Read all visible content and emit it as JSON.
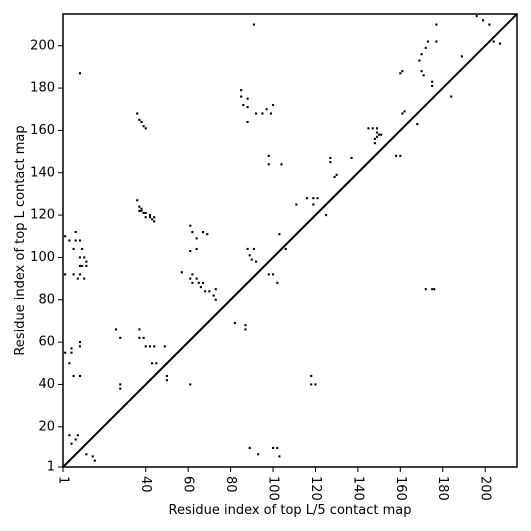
{
  "chart_data": {
    "type": "heatmap",
    "title": "",
    "xlabel": "Residue index of top L/5 contact map",
    "ylabel": "Residue index of top L contact map",
    "xlim": [
      1,
      215
    ],
    "ylim": [
      1,
      215
    ],
    "x_ticks": [
      1,
      40,
      60,
      80,
      100,
      120,
      140,
      160,
      180,
      200
    ],
    "y_ticks": [
      1,
      20,
      40,
      60,
      80,
      100,
      120,
      140,
      160,
      180,
      200
    ],
    "x_tick_labels": [
      "1",
      "40",
      "60",
      "80",
      "100",
      "120",
      "140",
      "160",
      "180",
      "200"
    ],
    "y_tick_labels": [
      "1",
      "20",
      "40",
      "60",
      "80",
      "100",
      "120",
      "140",
      "160",
      "180",
      "200"
    ],
    "x_tick_rotation_deg": -90,
    "diagonal": true,
    "grid": false,
    "colors": {
      "contact": "#000000",
      "background": "#ffffff",
      "frame": "#000000"
    },
    "points_upper": [
      [
        9,
        187
      ],
      [
        36,
        168
      ],
      [
        37,
        165
      ],
      [
        38,
        164
      ],
      [
        39,
        162
      ],
      [
        40,
        161
      ],
      [
        85,
        179
      ],
      [
        85,
        176
      ],
      [
        86,
        172
      ],
      [
        88,
        175
      ],
      [
        88,
        171
      ],
      [
        88,
        164
      ],
      [
        92,
        168
      ],
      [
        95,
        168
      ],
      [
        97,
        170
      ],
      [
        99,
        168
      ],
      [
        100,
        172
      ],
      [
        98,
        148
      ],
      [
        98,
        144
      ],
      [
        104,
        144
      ],
      [
        111,
        125
      ],
      [
        116,
        128
      ],
      [
        119,
        128
      ],
      [
        121,
        128
      ],
      [
        119,
        125
      ],
      [
        125,
        120
      ],
      [
        127,
        147
      ],
      [
        127,
        145
      ],
      [
        129,
        138
      ],
      [
        130,
        139
      ],
      [
        137,
        147
      ],
      [
        145,
        161
      ],
      [
        147,
        161
      ],
      [
        148,
        156
      ],
      [
        148,
        154
      ],
      [
        149,
        157
      ],
      [
        151,
        158
      ],
      [
        158,
        148
      ],
      [
        160,
        148
      ],
      [
        161,
        168
      ],
      [
        162,
        169
      ],
      [
        168,
        163
      ],
      [
        169,
        193
      ],
      [
        170,
        196
      ],
      [
        170,
        188
      ],
      [
        171,
        186
      ],
      [
        172,
        199
      ],
      [
        173,
        202
      ],
      [
        175,
        183
      ],
      [
        175,
        181
      ],
      [
        177,
        210
      ],
      [
        177,
        202
      ],
      [
        184,
        176
      ],
      [
        189,
        195
      ],
      [
        196,
        214
      ],
      [
        199,
        212
      ],
      [
        202,
        210
      ],
      [
        204,
        202
      ],
      [
        207,
        201
      ],
      [
        91,
        210
      ],
      [
        160,
        187
      ],
      [
        161,
        188
      ],
      [
        149,
        161
      ],
      [
        149,
        159
      ],
      [
        150,
        158
      ]
    ],
    "points_lower": [
      [
        2,
        110
      ],
      [
        4,
        108
      ],
      [
        7,
        112
      ],
      [
        7,
        108
      ],
      [
        6,
        104
      ],
      [
        9,
        108
      ],
      [
        10,
        104
      ],
      [
        11,
        100
      ],
      [
        12,
        98
      ],
      [
        9,
        100
      ],
      [
        2,
        92
      ],
      [
        6,
        92
      ],
      [
        8,
        90
      ],
      [
        9,
        92
      ],
      [
        11,
        90
      ],
      [
        9,
        96
      ],
      [
        10,
        96
      ],
      [
        12,
        96
      ],
      [
        36,
        127
      ],
      [
        37,
        124
      ],
      [
        38,
        122
      ],
      [
        39,
        121
      ],
      [
        40,
        121
      ],
      [
        42,
        119
      ],
      [
        43,
        118
      ],
      [
        44,
        117
      ],
      [
        37,
        122
      ],
      [
        38,
        123
      ],
      [
        40,
        119
      ],
      [
        42,
        120
      ],
      [
        44,
        119
      ],
      [
        57,
        93
      ],
      [
        61,
        90
      ],
      [
        62,
        88
      ],
      [
        62,
        92
      ],
      [
        64,
        90
      ],
      [
        65,
        88
      ],
      [
        67,
        88
      ],
      [
        66,
        86
      ],
      [
        68,
        84
      ],
      [
        61,
        115
      ],
      [
        62,
        112
      ],
      [
        64,
        109
      ],
      [
        67,
        112
      ],
      [
        69,
        111
      ],
      [
        61,
        103
      ],
      [
        64,
        104
      ],
      [
        70,
        84
      ],
      [
        72,
        82
      ],
      [
        73,
        85
      ],
      [
        89,
        101
      ],
      [
        90,
        99
      ],
      [
        91,
        104
      ],
      [
        88,
        104
      ],
      [
        92,
        98
      ],
      [
        98,
        92
      ],
      [
        100,
        92
      ],
      [
        102,
        88
      ],
      [
        103,
        111
      ],
      [
        106,
        104
      ],
      [
        73,
        80
      ],
      [
        82,
        69
      ],
      [
        87,
        68
      ],
      [
        87,
        66
      ],
      [
        26,
        66
      ],
      [
        28,
        62
      ],
      [
        37,
        66
      ],
      [
        37,
        62
      ],
      [
        39,
        62
      ],
      [
        40,
        58
      ],
      [
        42,
        58
      ],
      [
        44,
        58
      ],
      [
        43,
        50
      ],
      [
        45,
        50
      ],
      [
        49,
        58
      ],
      [
        28,
        38
      ],
      [
        28,
        40
      ],
      [
        50,
        44
      ],
      [
        50,
        42
      ],
      [
        61,
        40
      ],
      [
        9,
        58
      ],
      [
        9,
        60
      ],
      [
        2,
        55
      ],
      [
        5,
        57
      ],
      [
        5,
        55
      ],
      [
        4,
        50
      ],
      [
        6,
        44
      ],
      [
        9,
        44
      ],
      [
        4,
        16
      ],
      [
        7,
        14
      ],
      [
        8,
        16
      ],
      [
        5,
        12
      ],
      [
        12,
        7
      ],
      [
        15,
        6
      ],
      [
        16,
        4
      ],
      [
        89,
        10
      ],
      [
        93,
        7
      ],
      [
        100,
        10
      ],
      [
        102,
        10
      ],
      [
        103,
        6
      ],
      [
        118,
        44
      ],
      [
        120,
        40
      ],
      [
        118,
        40
      ],
      [
        172,
        85
      ],
      [
        175,
        85
      ],
      [
        176,
        85
      ]
    ]
  }
}
